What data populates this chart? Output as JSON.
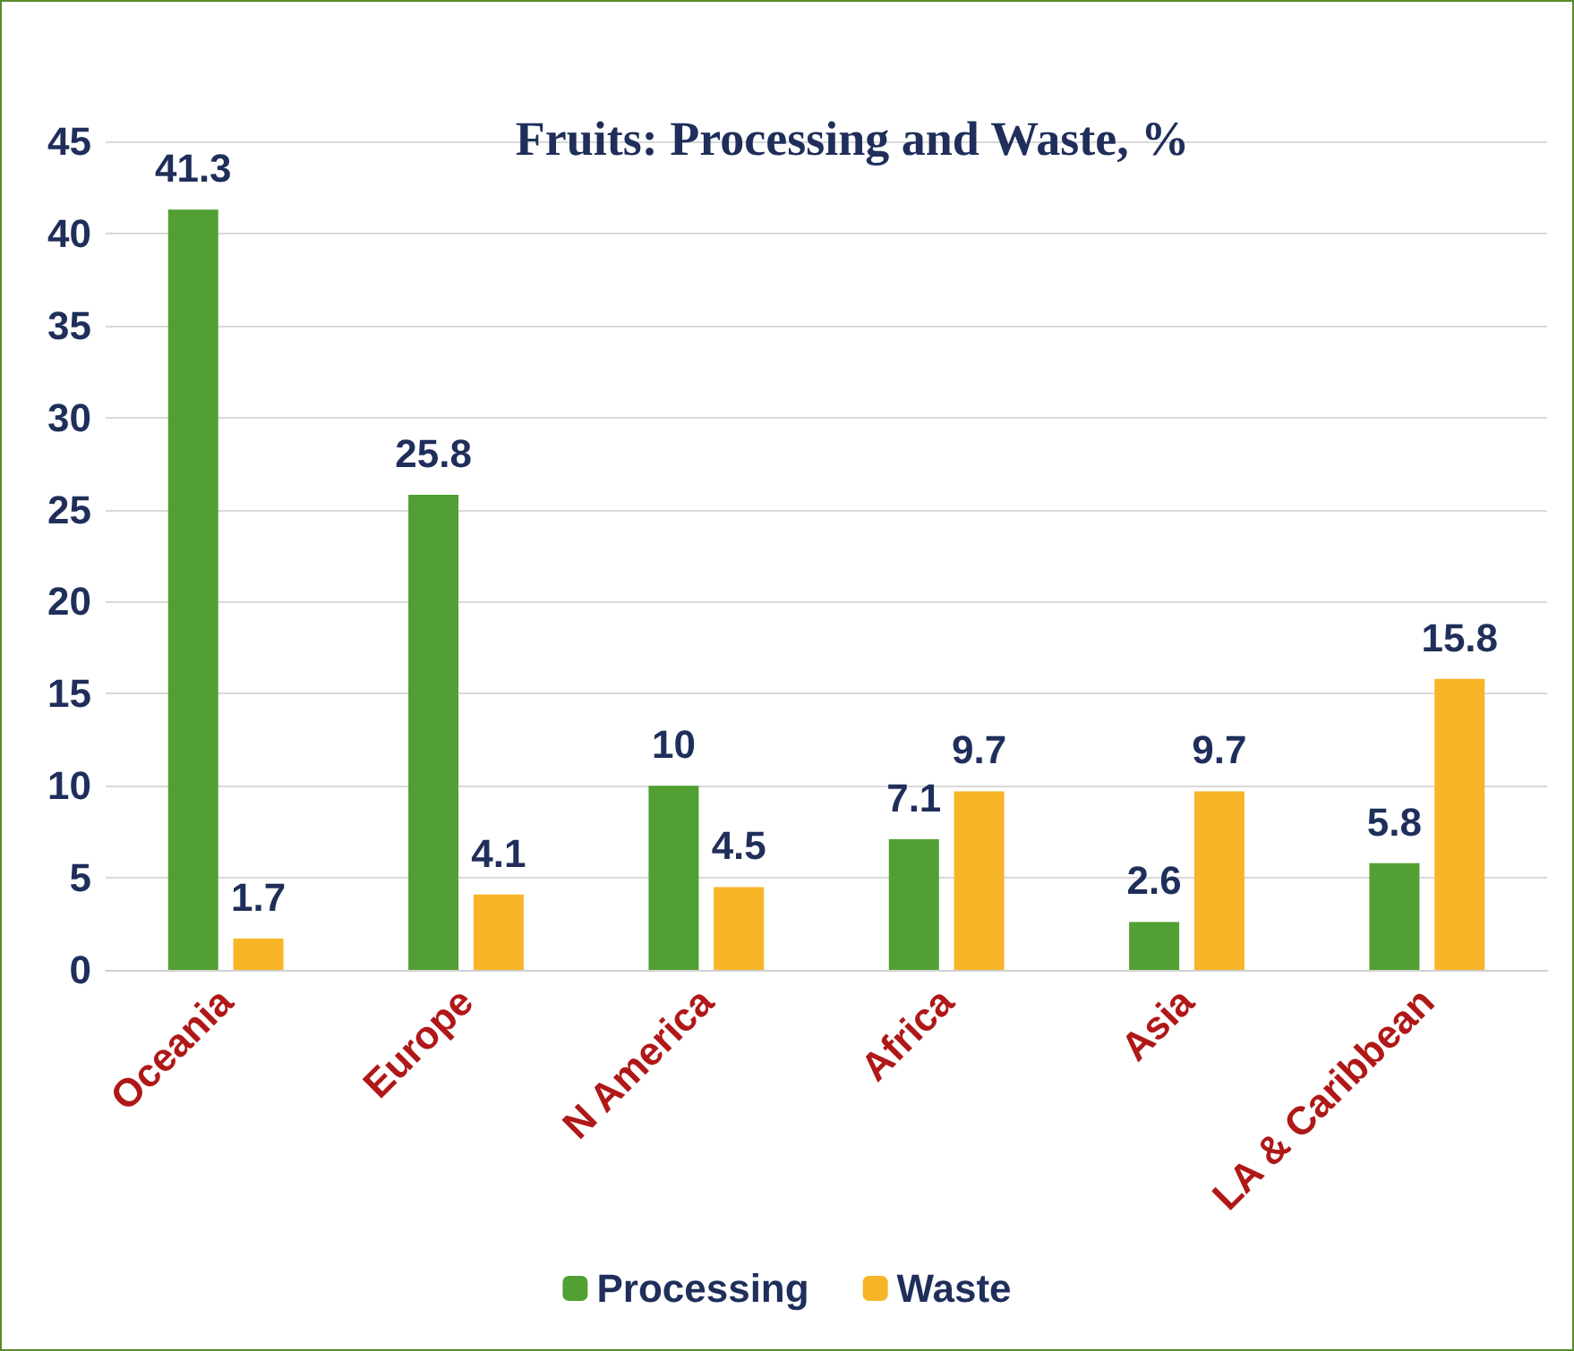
{
  "chart_data": {
    "type": "bar",
    "title": "Fruits: Processing and Waste, %",
    "categories": [
      "Oceania",
      "Europe",
      "N America",
      "Africa",
      "Asia",
      "LA & Caribbean"
    ],
    "series": [
      {
        "name": "Processing",
        "color": "#52a033",
        "values": [
          41.3,
          25.8,
          10,
          7.1,
          2.6,
          5.8
        ]
      },
      {
        "name": "Waste",
        "color": "#f8b527",
        "values": [
          1.7,
          4.1,
          4.5,
          9.7,
          9.7,
          15.8
        ]
      }
    ],
    "ylim": [
      0,
      45
    ],
    "yticks": [
      0,
      5,
      10,
      15,
      20,
      25,
      30,
      35,
      40,
      45
    ],
    "grid": "y",
    "legend": "bottom",
    "data_labels": true
  }
}
